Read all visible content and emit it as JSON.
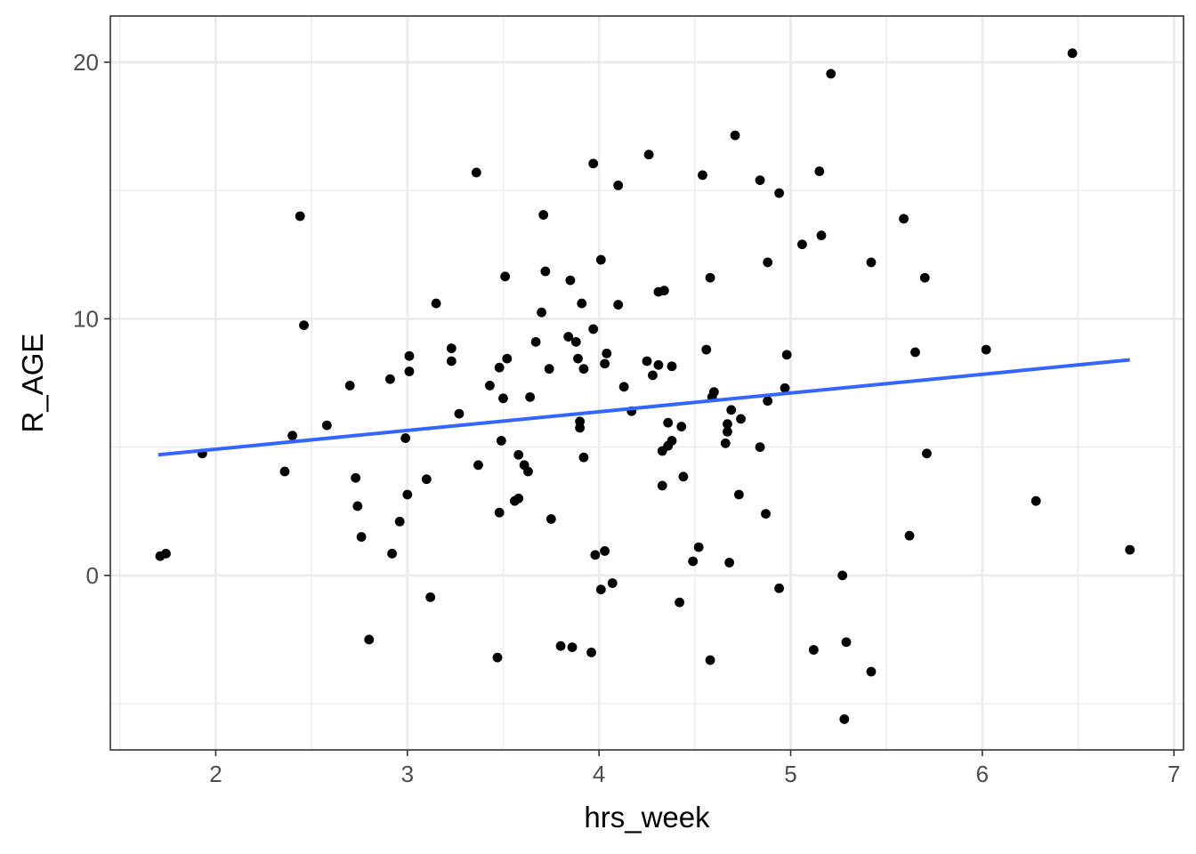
{
  "chart_data": {
    "type": "scatter",
    "title": "",
    "xlabel": "hrs_week",
    "ylabel": "R_AGE",
    "xlim": [
      1.45,
      7.05
    ],
    "ylim": [
      -6.8,
      21.8
    ],
    "x_ticks": [
      2,
      3,
      4,
      5,
      6,
      7
    ],
    "y_ticks": [
      0,
      10,
      20
    ],
    "x_tick_labels": [
      "2",
      "3",
      "4",
      "5",
      "6",
      "7"
    ],
    "y_tick_labels": [
      "0",
      "10",
      "20"
    ],
    "x_minor_ticks": [
      1.5,
      2.5,
      3.5,
      4.5,
      5.5,
      6.5
    ],
    "y_minor_ticks": [
      -5,
      5,
      15
    ],
    "grid": true,
    "legend": "none",
    "point_color": "#000000",
    "line_color": "#3366ff",
    "trend_line": {
      "x": [
        1.7,
        6.77
      ],
      "y": [
        4.7,
        8.4
      ]
    },
    "points": [
      [
        1.71,
        0.75
      ],
      [
        1.74,
        0.85
      ],
      [
        1.93,
        4.75
      ],
      [
        2.36,
        4.05
      ],
      [
        2.4,
        5.45
      ],
      [
        2.44,
        14.0
      ],
      [
        2.46,
        9.75
      ],
      [
        2.58,
        5.85
      ],
      [
        2.7,
        7.4
      ],
      [
        2.73,
        3.8
      ],
      [
        2.74,
        2.7
      ],
      [
        2.76,
        1.5
      ],
      [
        2.8,
        -2.5
      ],
      [
        2.91,
        7.65
      ],
      [
        2.92,
        0.85
      ],
      [
        2.96,
        2.1
      ],
      [
        2.99,
        5.35
      ],
      [
        3.0,
        3.15
      ],
      [
        3.01,
        8.55
      ],
      [
        3.01,
        7.95
      ],
      [
        3.1,
        3.75
      ],
      [
        3.12,
        -0.85
      ],
      [
        3.15,
        10.6
      ],
      [
        3.23,
        8.35
      ],
      [
        3.23,
        8.85
      ],
      [
        3.27,
        6.3
      ],
      [
        3.36,
        15.7
      ],
      [
        3.37,
        4.3
      ],
      [
        3.43,
        7.4
      ],
      [
        3.47,
        -3.2
      ],
      [
        3.48,
        8.1
      ],
      [
        3.48,
        2.45
      ],
      [
        3.49,
        5.25
      ],
      [
        3.5,
        6.9
      ],
      [
        3.51,
        11.65
      ],
      [
        3.52,
        8.45
      ],
      [
        3.56,
        2.9
      ],
      [
        3.58,
        3.0
      ],
      [
        3.58,
        4.7
      ],
      [
        3.61,
        4.3
      ],
      [
        3.63,
        4.05
      ],
      [
        3.64,
        6.95
      ],
      [
        3.67,
        9.1
      ],
      [
        3.7,
        10.25
      ],
      [
        3.71,
        14.05
      ],
      [
        3.72,
        11.85
      ],
      [
        3.74,
        8.05
      ],
      [
        3.75,
        2.2
      ],
      [
        3.8,
        -2.75
      ],
      [
        3.84,
        9.3
      ],
      [
        3.85,
        11.5
      ],
      [
        3.86,
        -2.8
      ],
      [
        3.88,
        9.1
      ],
      [
        3.89,
        8.45
      ],
      [
        3.9,
        6.0
      ],
      [
        3.9,
        5.75
      ],
      [
        3.91,
        10.6
      ],
      [
        3.92,
        8.05
      ],
      [
        3.92,
        4.6
      ],
      [
        3.96,
        -3.0
      ],
      [
        3.97,
        16.05
      ],
      [
        3.97,
        9.6
      ],
      [
        3.98,
        0.8
      ],
      [
        4.01,
        12.3
      ],
      [
        4.01,
        -0.55
      ],
      [
        4.03,
        8.25
      ],
      [
        4.03,
        0.95
      ],
      [
        4.04,
        8.65
      ],
      [
        4.07,
        -0.3
      ],
      [
        4.1,
        15.2
      ],
      [
        4.1,
        10.55
      ],
      [
        4.13,
        7.35
      ],
      [
        4.17,
        6.4
      ],
      [
        4.25,
        8.35
      ],
      [
        4.26,
        16.4
      ],
      [
        4.28,
        7.8
      ],
      [
        4.31,
        11.05
      ],
      [
        4.31,
        8.2
      ],
      [
        4.33,
        4.85
      ],
      [
        4.33,
        3.5
      ],
      [
        4.34,
        11.1
      ],
      [
        4.36,
        5.95
      ],
      [
        4.36,
        5.05
      ],
      [
        4.38,
        8.15
      ],
      [
        4.38,
        5.25
      ],
      [
        4.42,
        -1.05
      ],
      [
        4.43,
        5.8
      ],
      [
        4.44,
        3.85
      ],
      [
        4.49,
        0.55
      ],
      [
        4.52,
        1.1
      ],
      [
        4.54,
        15.6
      ],
      [
        4.56,
        8.8
      ],
      [
        4.58,
        11.6
      ],
      [
        4.58,
        -3.3
      ],
      [
        4.59,
        6.95
      ],
      [
        4.6,
        7.15
      ],
      [
        4.66,
        5.15
      ],
      [
        4.67,
        5.9
      ],
      [
        4.67,
        5.6
      ],
      [
        4.68,
        0.5
      ],
      [
        4.69,
        6.45
      ],
      [
        4.71,
        17.15
      ],
      [
        4.73,
        3.15
      ],
      [
        4.74,
        6.1
      ],
      [
        4.84,
        15.4
      ],
      [
        4.84,
        5.0
      ],
      [
        4.87,
        2.4
      ],
      [
        4.88,
        12.2
      ],
      [
        4.88,
        6.8
      ],
      [
        4.94,
        14.9
      ],
      [
        4.94,
        -0.5
      ],
      [
        4.97,
        7.3
      ],
      [
        4.98,
        8.6
      ],
      [
        5.06,
        12.9
      ],
      [
        5.12,
        -2.9
      ],
      [
        5.15,
        15.75
      ],
      [
        5.16,
        13.25
      ],
      [
        5.21,
        19.55
      ],
      [
        5.27,
        0.0
      ],
      [
        5.28,
        -5.6
      ],
      [
        5.29,
        -2.6
      ],
      [
        5.42,
        12.2
      ],
      [
        5.42,
        -3.75
      ],
      [
        5.59,
        13.9
      ],
      [
        5.62,
        1.55
      ],
      [
        5.65,
        8.7
      ],
      [
        5.7,
        11.6
      ],
      [
        5.71,
        4.75
      ],
      [
        6.02,
        8.8
      ],
      [
        6.28,
        2.9
      ],
      [
        6.47,
        20.35
      ],
      [
        6.77,
        1.0
      ]
    ]
  }
}
